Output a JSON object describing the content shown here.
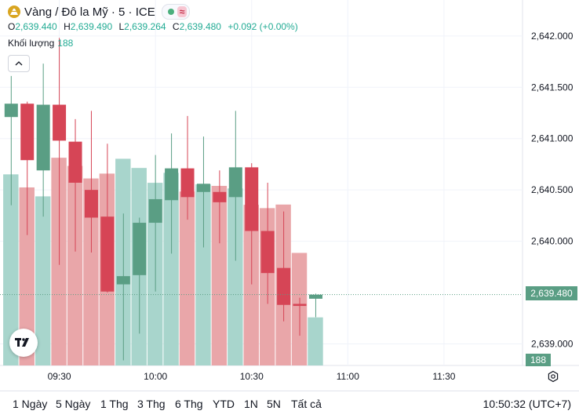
{
  "header": {
    "title": "Vàng / Đô la Mỹ · 5 · ICE",
    "symbol_icon": "gold-coin-icon",
    "status_icon": "market-open-dot-icon",
    "wave_icon": "wave-icon"
  },
  "ohlc": {
    "o_label": "O",
    "o_value": "2,639.440",
    "h_label": "H",
    "h_value": "2,639.490",
    "l_label": "L",
    "l_value": "2,639.264",
    "c_label": "C",
    "c_value": "2,639.480",
    "change": "+0.092 (+0.00%)"
  },
  "volume_legend": {
    "label": "Khối lượng",
    "value": "188"
  },
  "price_tag": "2,639.480",
  "volume_tag": "188",
  "range_buttons": [
    "1 Ngày",
    "5 Ngày",
    "1 Thg",
    "3 Thg",
    "6 Thg",
    "YTD",
    "1N",
    "5N",
    "Tất cả"
  ],
  "clock": "10:50:32 (UTC+7)",
  "colors": {
    "up": "#5a9e84",
    "down": "#d64556",
    "up_vol": "#a8d5cc",
    "down_vol": "#e9a6a9"
  },
  "chart_data": {
    "type": "candlestick",
    "title": "Vàng / Đô la Mỹ · 5 · ICE",
    "y_ticks": [
      "2,642.000",
      "2,641.500",
      "2,641.000",
      "2,640.500",
      "2,640.000",
      "2,639.000"
    ],
    "y_tick_values": [
      2642.0,
      2641.5,
      2641.0,
      2640.5,
      2640.0,
      2639.0
    ],
    "x_ticks": [
      "09:30",
      "10:00",
      "10:30",
      "11:00",
      "11:30"
    ],
    "x_tick_minutes": [
      570,
      600,
      630,
      660,
      690
    ],
    "ylim": [
      2638.79,
      2642.35
    ],
    "xlim_minutes": [
      551.5,
      714.5
    ],
    "current_price": 2639.48,
    "candles": [
      {
        "t": 555,
        "o": 2641.21,
        "h": 2641.61,
        "l": 2640.35,
        "c": 2641.34
      },
      {
        "t": 560,
        "o": 2641.34,
        "h": 2641.36,
        "l": 2640.06,
        "c": 2640.79
      },
      {
        "t": 565,
        "o": 2640.69,
        "h": 2641.73,
        "l": 2640.24,
        "c": 2641.33
      },
      {
        "t": 570,
        "o": 2641.33,
        "h": 2641.98,
        "l": 2639.77,
        "c": 2640.98
      },
      {
        "t": 575,
        "o": 2640.97,
        "h": 2641.19,
        "l": 2639.9,
        "c": 2640.57
      },
      {
        "t": 580,
        "o": 2640.5,
        "h": 2641.27,
        "l": 2639.89,
        "c": 2640.23
      },
      {
        "t": 585,
        "o": 2640.24,
        "h": 2640.95,
        "l": 2639.5,
        "c": 2639.51
      },
      {
        "t": 590,
        "o": 2639.58,
        "h": 2640.27,
        "l": 2638.84,
        "c": 2639.66
      },
      {
        "t": 595,
        "o": 2639.67,
        "h": 2640.23,
        "l": 2639.1,
        "c": 2640.18
      },
      {
        "t": 600,
        "o": 2640.18,
        "h": 2640.84,
        "l": 2639.51,
        "c": 2640.41
      },
      {
        "t": 605,
        "o": 2640.4,
        "h": 2641.05,
        "l": 2639.88,
        "c": 2640.71
      },
      {
        "t": 610,
        "o": 2640.71,
        "h": 2641.22,
        "l": 2640.21,
        "c": 2640.43
      },
      {
        "t": 615,
        "o": 2640.48,
        "h": 2641.02,
        "l": 2639.94,
        "c": 2640.56
      },
      {
        "t": 620,
        "o": 2640.48,
        "h": 2640.69,
        "l": 2639.98,
        "c": 2640.38
      },
      {
        "t": 625,
        "o": 2640.43,
        "h": 2641.27,
        "l": 2639.81,
        "c": 2640.72
      },
      {
        "t": 630,
        "o": 2640.72,
        "h": 2640.76,
        "l": 2639.58,
        "c": 2640.1
      },
      {
        "t": 635,
        "o": 2640.1,
        "h": 2640.57,
        "l": 2639.39,
        "c": 2639.69
      },
      {
        "t": 640,
        "o": 2639.74,
        "h": 2640.29,
        "l": 2639.22,
        "c": 2639.38
      },
      {
        "t": 645,
        "o": 2639.39,
        "h": 2639.45,
        "l": 2639.08,
        "c": 2639.37
      },
      {
        "t": 650,
        "o": 2639.44,
        "h": 2639.49,
        "l": 2639.26,
        "c": 2639.48
      }
    ],
    "volumes": [
      747,
      696,
      661,
      812,
      780,
      731,
      750,
      808,
      772,
      714,
      753,
      680,
      708,
      702,
      692,
      628,
      615,
      629,
      440,
      188
    ]
  }
}
